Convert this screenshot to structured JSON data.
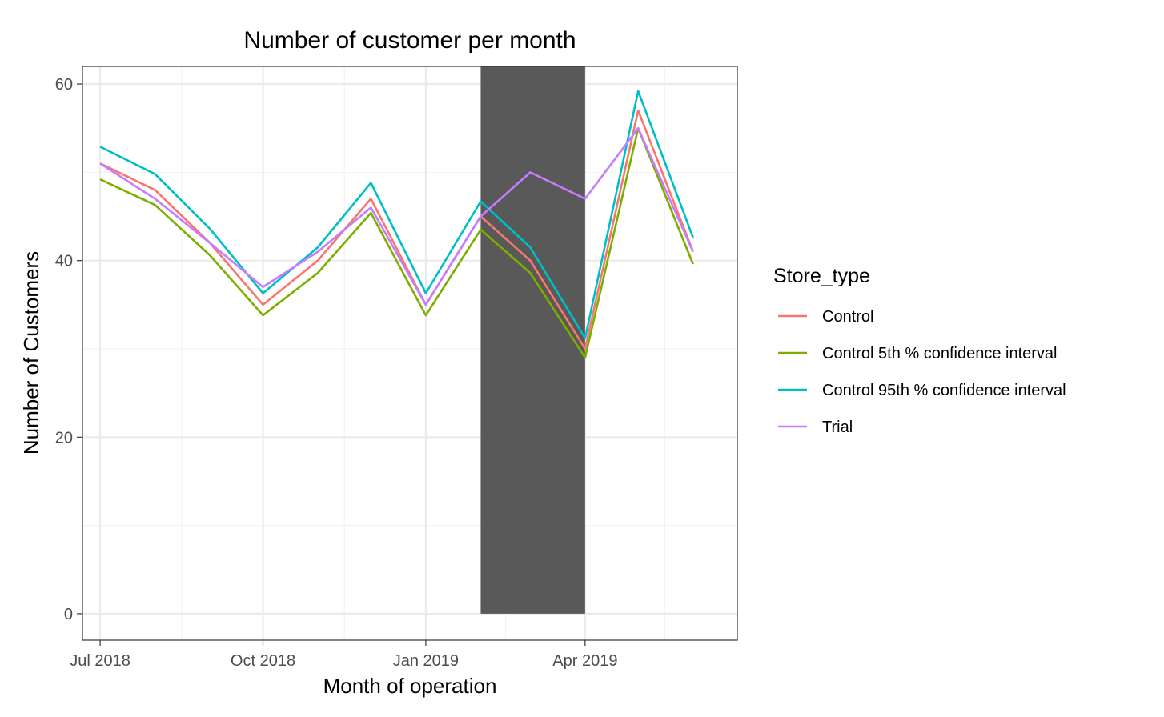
{
  "chart_data": {
    "type": "line",
    "title": "Number of customer per month",
    "xlabel": "Month of operation",
    "ylabel": "Number of Customers",
    "x": [
      "2018-07",
      "2018-08",
      "2018-09",
      "2018-10",
      "2018-11",
      "2018-12",
      "2019-01",
      "2019-02",
      "2019-03",
      "2019-04",
      "2019-05",
      "2019-06"
    ],
    "x_ticks": [
      {
        "value": "2018-07",
        "label": "Jul 2018"
      },
      {
        "value": "2018-10",
        "label": "Oct 2018"
      },
      {
        "value": "2019-01",
        "label": "Jan 2019"
      },
      {
        "value": "2019-04",
        "label": "Apr 2019"
      }
    ],
    "y_ticks": [
      0,
      20,
      40,
      60
    ],
    "ylim": [
      -3,
      62
    ],
    "xlim": [
      "2018-06-21",
      "2019-06-26"
    ],
    "grid": true,
    "legend_title": "Store_type",
    "legend_position": "right",
    "shaded_region": {
      "x_start": "2019-02-01",
      "x_end": "2019-04-01",
      "y_start": 0,
      "y_end": 62,
      "color": "#595959"
    },
    "series": [
      {
        "name": "Control",
        "color": "#F8766D",
        "values": [
          51,
          48,
          42,
          35,
          40,
          47,
          35,
          45,
          40,
          30,
          57,
          41
        ]
      },
      {
        "name": "Control 5th % confidence interval",
        "color": "#7CAE00",
        "values": [
          49.2,
          46.3,
          40.6,
          33.8,
          38.6,
          45.4,
          33.8,
          43.5,
          38.6,
          29,
          55,
          39.6
        ]
      },
      {
        "name": "Control 95th % confidence interval",
        "color": "#00BFC4",
        "values": [
          52.9,
          49.8,
          43.6,
          36.3,
          41.5,
          48.8,
          36.3,
          46.7,
          41.5,
          31.2,
          59.2,
          42.6
        ]
      },
      {
        "name": "Trial",
        "color": "#C77CFF",
        "values": [
          51,
          47,
          42,
          37,
          41,
          46,
          35,
          45,
          50,
          47,
          55,
          41
        ]
      }
    ]
  }
}
